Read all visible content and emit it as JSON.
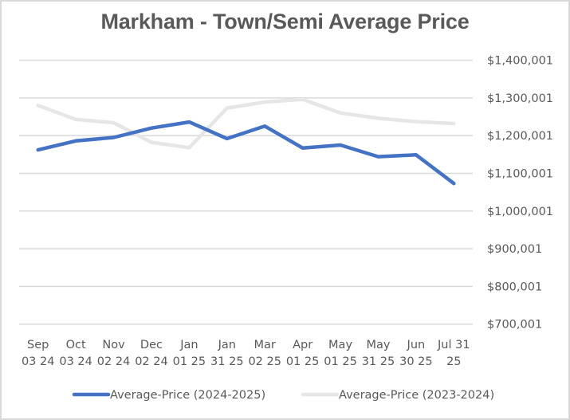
{
  "chart_data": {
    "type": "line",
    "title": "Markham - Town/Semi Average Price",
    "xlabel": "",
    "ylabel": "",
    "categories": [
      [
        "Sep",
        "03 24"
      ],
      [
        "Oct",
        "03 24"
      ],
      [
        "Nov",
        "02 24"
      ],
      [
        "Dec",
        "02 24"
      ],
      [
        "Jan",
        "01 25"
      ],
      [
        "Jan",
        "31 25"
      ],
      [
        "Mar",
        "02 25"
      ],
      [
        "Apr",
        "01 25"
      ],
      [
        "May",
        "01 25"
      ],
      [
        "May",
        "31 25"
      ],
      [
        "Jun",
        "30 25"
      ],
      [
        "Jul 31",
        "25"
      ]
    ],
    "y_axis": {
      "position": "right",
      "ylim": [
        700001,
        1400001
      ],
      "ticks": [
        1400001,
        1300001,
        1200001,
        1100001,
        1000001,
        900001,
        800001,
        700001
      ],
      "tick_labels": [
        "$1,400,001",
        "$1,300,001",
        "$1,200,001",
        "$1,100,001",
        "$1,000,001",
        "$900,001",
        "$800,001",
        "$700,001"
      ]
    },
    "grid": true,
    "legend_position": "bottom",
    "series": [
      {
        "name": "Average-Price (2024-2025)",
        "color": "#4472c4",
        "values": [
          1162000,
          1186000,
          1195000,
          1220000,
          1236000,
          1192000,
          1225000,
          1167000,
          1175000,
          1144000,
          1149000,
          1073000
        ]
      },
      {
        "name": "Average-Price (2023-2024)",
        "color": "#e7e6e6",
        "values": [
          1280000,
          1243000,
          1234000,
          1182000,
          1168000,
          1273000,
          1289000,
          1296000,
          1260000,
          1246000,
          1237000,
          1232000
        ]
      }
    ]
  }
}
